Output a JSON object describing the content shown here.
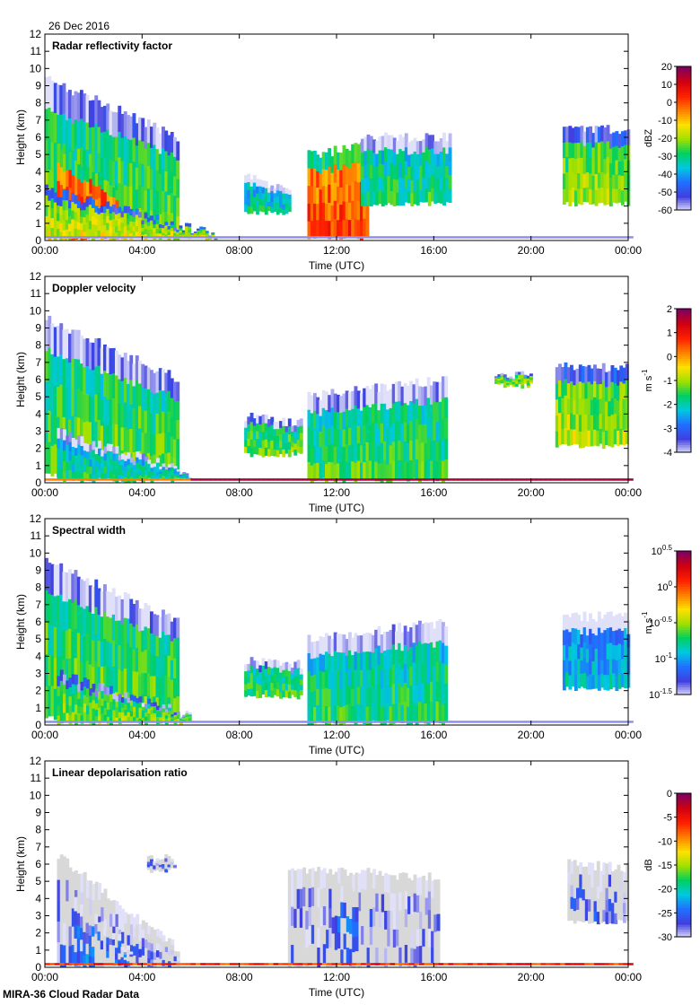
{
  "date": "26 Dec 2016",
  "footer": "MIRA-36 Cloud Radar Data",
  "colors": {
    "colormap": [
      "#e0e0f8",
      "#4040e0",
      "#2070ff",
      "#00c8e0",
      "#00d060",
      "#a0e000",
      "#ffe000",
      "#ff8000",
      "#ff2000",
      "#d00010",
      "#800060"
    ],
    "ldr_background": "#d8d8d8"
  },
  "chart_data": [
    {
      "type": "heatmap",
      "title": "Radar reflectivity factor",
      "xlabel": "Time (UTC)",
      "ylabel": "Height (km)",
      "x_ticks": [
        "00:00",
        "04:00",
        "08:00",
        "12:00",
        "16:00",
        "20:00",
        "00:00"
      ],
      "y_ticks": [
        "0",
        "1",
        "2",
        "3",
        "4",
        "5",
        "6",
        "7",
        "8",
        "9",
        "10",
        "11",
        "12"
      ],
      "ylim": [
        0,
        12
      ],
      "colorbar": {
        "label": "dBZ",
        "ticks": [
          "20",
          "10",
          "0",
          "-10",
          "-20",
          "-30",
          "-40",
          "-50",
          "-60"
        ],
        "range": [
          -60,
          20
        ]
      },
      "grid": false,
      "features": [
        {
          "t0": 0.0,
          "t1": 5.5,
          "bottom": 0.3,
          "top_start": 9.4,
          "top_end": 6.0,
          "value": 0.45
        },
        {
          "t0": 0.5,
          "t1": 3.0,
          "bottom": 0.0,
          "top_start": 5.5,
          "top_end": 3.0,
          "value": 0.8
        },
        {
          "t0": 0.0,
          "t1": 7.0,
          "bottom": 0.0,
          "top_start": 3.0,
          "top_end": 0.3,
          "value": 0.55
        },
        {
          "t0": 8.2,
          "t1": 10.0,
          "bottom": 1.5,
          "top_start": 3.7,
          "top_end": 3.0,
          "value": 0.35
        },
        {
          "t0": 10.8,
          "t1": 13.2,
          "bottom": 0.0,
          "top_start": 5.0,
          "top_end": 5.5,
          "value": 0.78
        },
        {
          "t0": 13.0,
          "t1": 16.6,
          "bottom": 2.0,
          "top_start": 6.0,
          "top_end": 6.0,
          "value": 0.4
        },
        {
          "t0": 21.3,
          "t1": 24.0,
          "bottom": 2.0,
          "top_start": 6.5,
          "top_end": 6.5,
          "value": 0.5
        }
      ]
    },
    {
      "type": "heatmap",
      "title": "Doppler velocity",
      "xlabel": "Time (UTC)",
      "ylabel": "Height (km)",
      "x_ticks": [
        "00:00",
        "04:00",
        "08:00",
        "12:00",
        "16:00",
        "20:00",
        "00:00"
      ],
      "y_ticks": [
        "0",
        "1",
        "2",
        "3",
        "4",
        "5",
        "6",
        "7",
        "8",
        "9",
        "10",
        "11",
        "12"
      ],
      "ylim": [
        0,
        12
      ],
      "colorbar": {
        "label": "m s",
        "label_sup": "-1",
        "ticks": [
          "2",
          "1",
          "0",
          "-1",
          "-2",
          "-3",
          "-4"
        ],
        "range": [
          -4,
          2
        ]
      },
      "grid": false,
      "features": [
        {
          "t0": 0.0,
          "t1": 5.5,
          "bottom": 0.3,
          "top_start": 9.5,
          "top_end": 6.0,
          "value": 0.45
        },
        {
          "t0": 0.5,
          "t1": 6.0,
          "bottom": 0.0,
          "top_start": 3.0,
          "top_end": 0.5,
          "value": 0.38
        },
        {
          "t0": 8.2,
          "t1": 10.5,
          "bottom": 1.5,
          "top_start": 3.8,
          "top_end": 3.5,
          "value": 0.45
        },
        {
          "t0": 10.8,
          "t1": 16.5,
          "bottom": 0.0,
          "top_start": 5.0,
          "top_end": 6.0,
          "value": 0.42
        },
        {
          "t0": 18.5,
          "t1": 20.0,
          "bottom": 5.5,
          "top_start": 6.2,
          "top_end": 6.2,
          "value": 0.5
        },
        {
          "t0": 21.0,
          "t1": 24.0,
          "bottom": 2.0,
          "top_start": 6.7,
          "top_end": 6.7,
          "value": 0.52
        }
      ]
    },
    {
      "type": "heatmap",
      "title": "Spectral width",
      "xlabel": "Time (UTC)",
      "ylabel": "Height (km)",
      "x_ticks": [
        "00:00",
        "04:00",
        "08:00",
        "12:00",
        "16:00",
        "20:00",
        "00:00"
      ],
      "y_ticks": [
        "0",
        "1",
        "2",
        "3",
        "4",
        "5",
        "6",
        "7",
        "8",
        "9",
        "10",
        "11",
        "12"
      ],
      "ylim": [
        0,
        12
      ],
      "colorbar": {
        "label": "m s",
        "label_sup": "-1",
        "ticks": [
          {
            "base": "10",
            "exp": "0.5"
          },
          {
            "base": "10",
            "exp": "0"
          },
          {
            "base": "10",
            "exp": "-0.5"
          },
          {
            "base": "10",
            "exp": "-1"
          },
          {
            "base": "10",
            "exp": "-1.5"
          }
        ],
        "range": [
          -1.5,
          0.5
        ]
      },
      "grid": false,
      "features": [
        {
          "t0": 0.0,
          "t1": 5.5,
          "bottom": 0.3,
          "top_start": 9.5,
          "top_end": 6.0,
          "value": 0.45
        },
        {
          "t0": 0.5,
          "t1": 6.0,
          "bottom": 0.0,
          "top_start": 3.0,
          "top_end": 0.5,
          "value": 0.48
        },
        {
          "t0": 8.2,
          "t1": 10.5,
          "bottom": 1.5,
          "top_start": 3.8,
          "top_end": 3.5,
          "value": 0.42
        },
        {
          "t0": 10.8,
          "t1": 16.5,
          "bottom": 0.0,
          "top_start": 5.0,
          "top_end": 6.0,
          "value": 0.4
        },
        {
          "t0": 21.3,
          "t1": 24.0,
          "bottom": 2.0,
          "top_start": 6.3,
          "top_end": 6.3,
          "value": 0.3
        }
      ]
    },
    {
      "type": "heatmap",
      "title": "Linear depolarisation ratio",
      "xlabel": "Time (UTC)",
      "ylabel": "Height (km)",
      "x_ticks": [
        "00:00",
        "04:00",
        "08:00",
        "12:00",
        "16:00",
        "20:00",
        "00:00"
      ],
      "y_ticks": [
        "0",
        "1",
        "2",
        "3",
        "4",
        "5",
        "6",
        "7",
        "8",
        "9",
        "10",
        "11",
        "12"
      ],
      "ylim": [
        0,
        12
      ],
      "colorbar": {
        "label": "dB",
        "ticks": [
          "0",
          "-5",
          "-10",
          "-15",
          "-20",
          "-25",
          "-30"
        ],
        "range": [
          -30,
          0
        ]
      },
      "grid": false,
      "features": [
        {
          "t0": 0.5,
          "t1": 5.5,
          "bottom": 0.0,
          "top_start": 6.5,
          "top_end": 1.0,
          "value": 0.1
        },
        {
          "t0": 1.2,
          "t1": 3.5,
          "bottom": 0.0,
          "top_start": 4.0,
          "top_end": 1.0,
          "value": 0.2
        },
        {
          "t0": 4.2,
          "t1": 5.3,
          "bottom": 5.5,
          "top_start": 6.3,
          "top_end": 6.3,
          "value": 0.15
        },
        {
          "t0": 10.0,
          "t1": 16.2,
          "bottom": 0.0,
          "top_start": 5.8,
          "top_end": 5.2,
          "value": 0.1
        },
        {
          "t0": 11.8,
          "t1": 12.8,
          "bottom": 0.0,
          "top_start": 5.0,
          "top_end": 4.5,
          "value": 0.2
        },
        {
          "t0": 21.5,
          "t1": 24.0,
          "bottom": 2.5,
          "top_start": 6.0,
          "top_end": 5.8,
          "value": 0.12
        }
      ]
    }
  ]
}
